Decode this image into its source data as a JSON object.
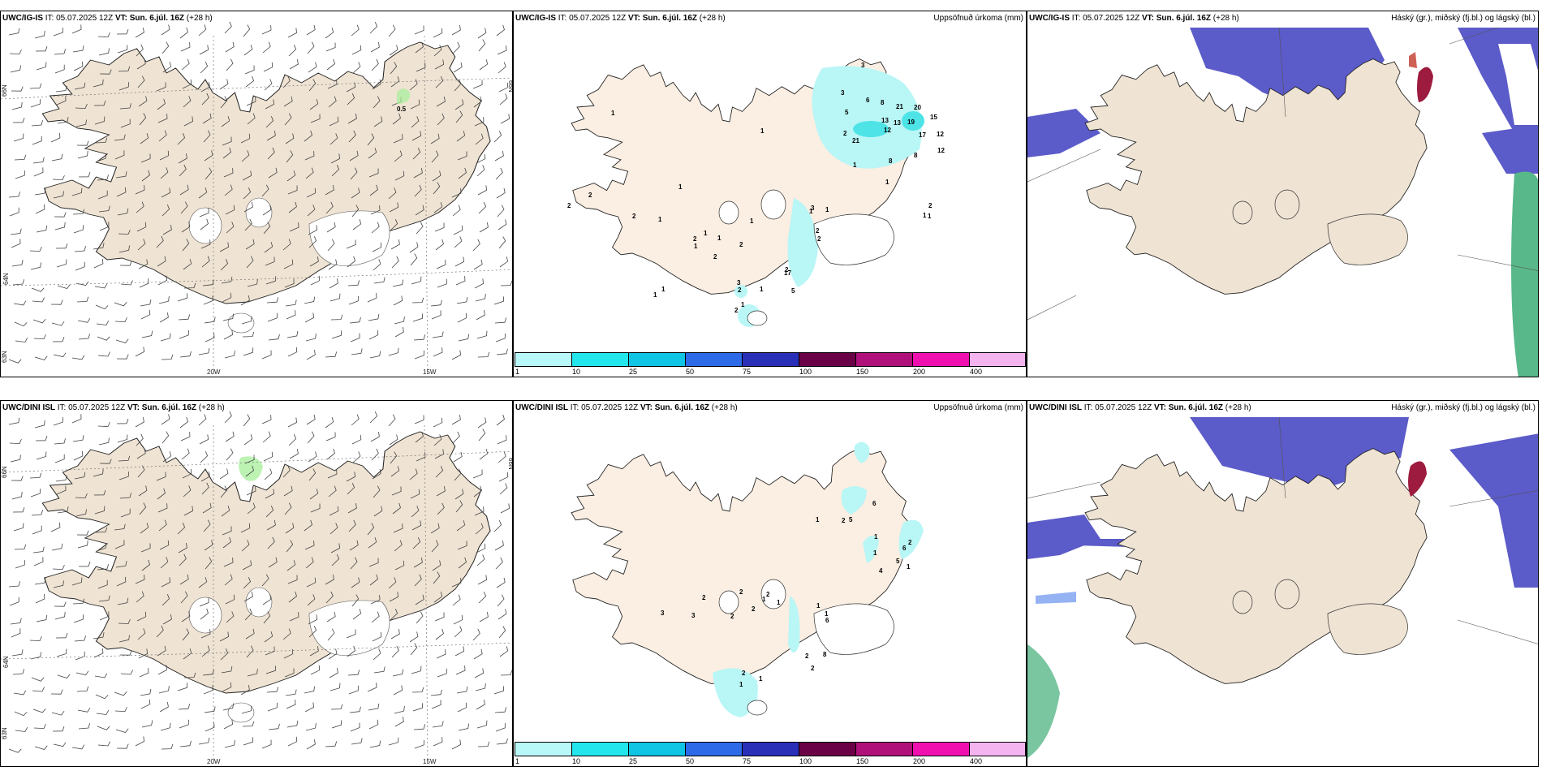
{
  "colors": {
    "land": "#efe3d3",
    "land_precip": "#fbeee2",
    "ice": "#ffffff",
    "cloud_high": "#5b5bc9",
    "cloud_high_light": "#7b9ff0",
    "cloud_mid": "#9c1b3e",
    "cloud_low": "#58b88a",
    "precip_light": "#b9f6f6",
    "precip_mid": "#4ee4e7"
  },
  "panels": [
    {
      "model": "UWC/IG-IS",
      "it": "IT: 05.07.2025 12Z",
      "vt_label": "VT:",
      "vt": "Sun. 6.júl. 16Z",
      "lead": "(+28 h)",
      "title_right": "",
      "type": "wind"
    },
    {
      "model": "UWC/IG-IS",
      "it": "IT: 05.07.2025 12Z",
      "vt_label": "VT:",
      "vt": "Sun. 6.júl. 16Z",
      "lead": "(+28 h)",
      "title_right": "Uppsöfnuð úrkoma (mm)",
      "type": "precip"
    },
    {
      "model": "UWC/IG-IS",
      "it": "IT: 05.07.2025 12Z",
      "vt_label": "VT:",
      "vt": "Sun. 6.júl. 16Z",
      "lead": "(+28 h)",
      "title_right": "Háský (gr.), miðský (fj.bl.) og lágský (bl.)",
      "type": "cloud"
    },
    {
      "model": "UWC/DINI ISL",
      "it": "IT: 05.07.2025 12Z",
      "vt_label": "VT:",
      "vt": "Sun. 6.júl. 16Z",
      "lead": "(+28 h)",
      "title_right": "",
      "type": "wind"
    },
    {
      "model": "UWC/DINI ISL",
      "it": "IT: 05.07.2025 12Z",
      "vt_label": "VT:",
      "vt": "Sun. 6.júl. 16Z",
      "lead": "(+28 h)",
      "title_right": "Uppsöfnuð úrkoma (mm)",
      "type": "precip"
    },
    {
      "model": "UWC/DINI ISL",
      "it": "IT: 05.07.2025 12Z",
      "vt_label": "VT:",
      "vt": "Sun. 6.júl. 16Z",
      "lead": "(+28 h)",
      "title_right": "Háský (gr.), miðský (fj.bl.) og lágský (bl.)",
      "type": "cloud"
    }
  ],
  "axis_labels": {
    "lat66": "66N",
    "lat64": "64N",
    "lat63": "63N",
    "lon20": "20W",
    "lon15": "15W"
  },
  "colorbar": {
    "ticks": [
      "1",
      "10",
      "25",
      "50",
      "75",
      "100",
      "150",
      "200",
      "400"
    ],
    "colors": [
      "#b9f8f8",
      "#22e6ec",
      "#10c4e4",
      "#2c6ae8",
      "#2a2fb8",
      "#6a0045",
      "#b0107a",
      "#f010b0",
      "#f4b4f0"
    ]
  },
  "precip_values_top": [
    "3",
    "3",
    "6",
    "5",
    "8",
    "21",
    "20",
    "13",
    "13",
    "19",
    "15",
    "2",
    "12",
    "12",
    "21",
    "17",
    "12",
    "8",
    "8",
    "1",
    "1",
    "1",
    "1",
    "1",
    "2",
    "2",
    "1",
    "2",
    "1",
    "1",
    "3",
    "2",
    "2",
    "2",
    "1",
    "1",
    "2",
    "3",
    "2",
    "1",
    "17",
    "1",
    "5",
    "2",
    "1",
    "1",
    "2",
    "1",
    "2",
    "2",
    "1",
    "1",
    "1"
  ],
  "precip_values_bottom": [
    "1",
    "2",
    "5",
    "6",
    "1",
    "1",
    "2",
    "6",
    "5",
    "4",
    "1",
    "2",
    "1",
    "2",
    "1",
    "2",
    "2",
    "2",
    "1",
    "1",
    "3",
    "3",
    "6",
    "8",
    "2",
    "2",
    "2",
    "1",
    "1"
  ],
  "wind_max_top": "0.5"
}
